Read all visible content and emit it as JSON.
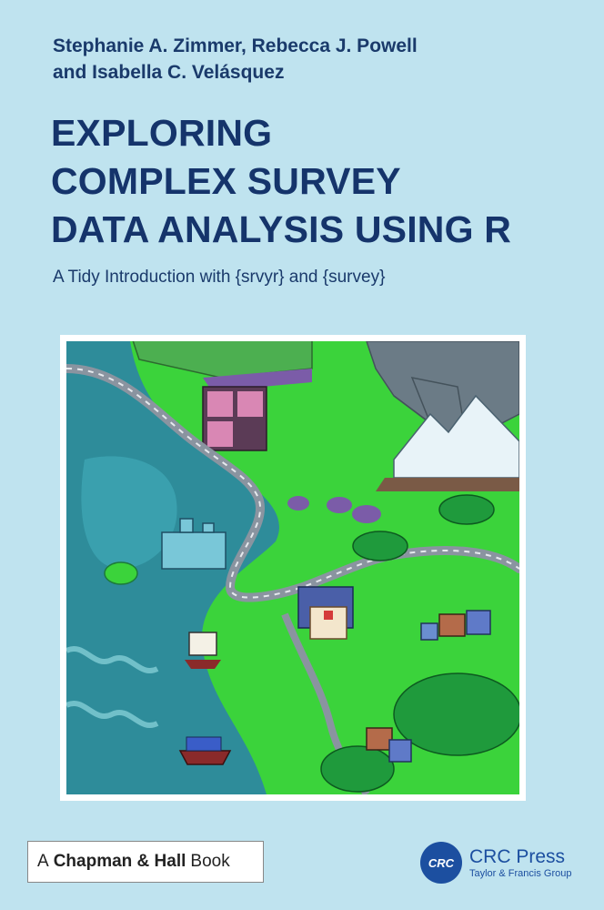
{
  "authors": {
    "line1": "Stephanie A. Zimmer, Rebecca J. Powell",
    "line2": "and Isabella C. Velásquez"
  },
  "title": {
    "line1": "EXPLORING",
    "line2": "COMPLEX SURVEY",
    "line3": "DATA ANALYSIS USING R"
  },
  "subtitle": "A Tidy Introduction with {srvyr} and {survey}",
  "publisher": {
    "prefix": "A",
    "bold": "Chapman & Hall",
    "suffix": "Book"
  },
  "crc": {
    "logo_text": "CRC",
    "name": "CRC Press",
    "group": "Taylor & Francis Group"
  },
  "colors": {
    "background": "#bfe3ef",
    "title": "#15346b",
    "crc_blue": "#1c4fa0",
    "land": "#3bd33b",
    "water": "#2e8c9a"
  },
  "illustration": "landscape-map-illustration"
}
